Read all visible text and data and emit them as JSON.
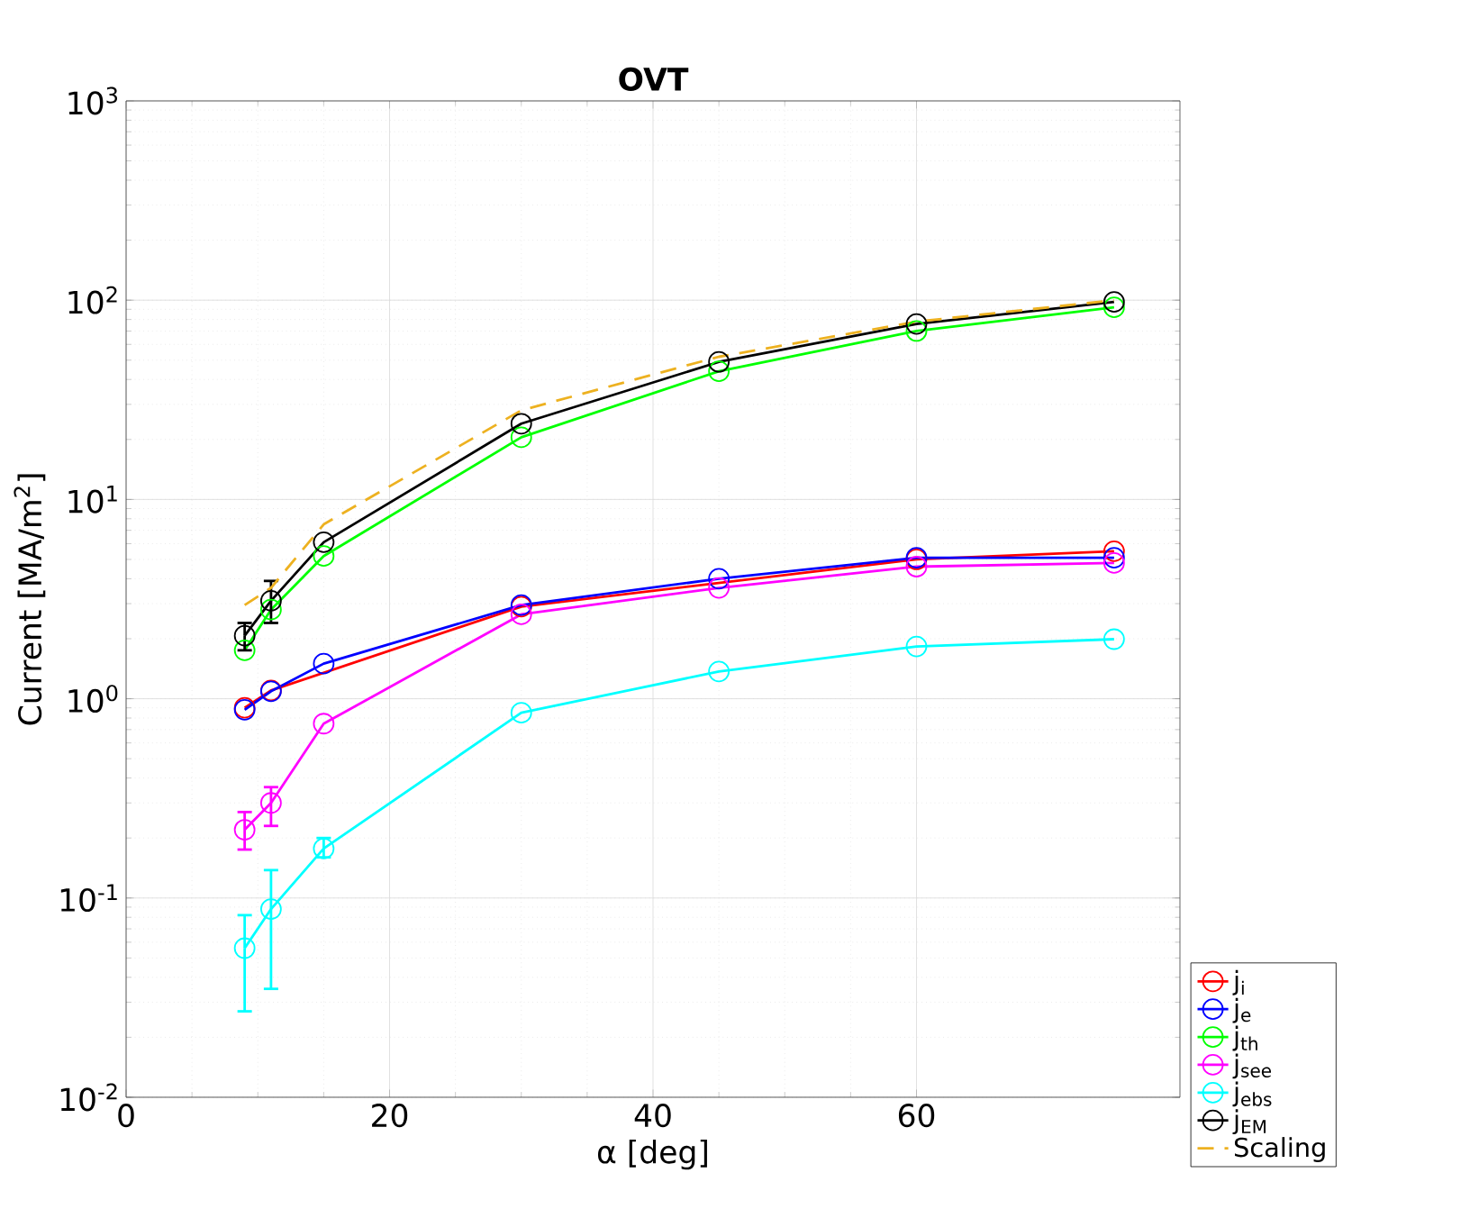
{
  "chart_data": {
    "type": "line",
    "title": "OVT",
    "xlabel": "α [deg]",
    "ylabel": "Current [MA/m$^{2}$]",
    "x": [
      9,
      11,
      15,
      30,
      45,
      60,
      75
    ],
    "xlim": [
      0,
      80
    ],
    "xticks": [
      0,
      20,
      40,
      60
    ],
    "ylim": [
      0.01,
      1000
    ],
    "yticks": [
      {
        "value": 0.01,
        "label": "10$^{-2}$"
      },
      {
        "value": 0.1,
        "label": "10$^{-1}$"
      },
      {
        "value": 1,
        "label": "10$^{0}$"
      },
      {
        "value": 10,
        "label": "10$^{1}$"
      },
      {
        "value": 100,
        "label": "10$^{2}$"
      },
      {
        "value": 1000,
        "label": "10$^{3}$"
      }
    ],
    "log": "y",
    "grid": true,
    "legend": "bottom right",
    "marker": "circle",
    "line_style": "solid",
    "series": [
      {
        "name": "j$_{i}$",
        "color": "#ff0000",
        "values": [
          0.9,
          1.1,
          null,
          2.9,
          null,
          5.0,
          5.5
        ]
      },
      {
        "name": "j$_{e}$",
        "color": "#0000ff",
        "values": [
          0.88,
          1.09,
          1.5,
          2.95,
          4.0,
          5.1,
          5.1
        ]
      },
      {
        "name": "j$_{th}$",
        "color": "#00ff00",
        "values": [
          1.75,
          2.8,
          5.2,
          20.5,
          44,
          70,
          92
        ]
      },
      {
        "name": "j$_{see}$",
        "color": "#ff00ff",
        "values": [
          0.22,
          0.3,
          0.75,
          2.65,
          3.6,
          4.6,
          4.8
        ],
        "errors": [
          [
            0.175,
            0.27
          ],
          [
            0.23,
            0.36
          ],
          null,
          null,
          null,
          null,
          null
        ]
      },
      {
        "name": "j$_{ebs}$",
        "color": "#00ffff",
        "values": [
          0.056,
          0.088,
          0.177,
          0.85,
          1.37,
          1.83,
          1.99
        ],
        "errors": [
          [
            0.027,
            0.082
          ],
          [
            0.035,
            0.138
          ],
          [
            0.16,
            0.2
          ],
          null,
          null,
          null,
          null
        ]
      },
      {
        "name": "j$_{EM}$",
        "color": "#000000",
        "values": [
          2.07,
          3.1,
          6.1,
          24,
          49,
          76,
          98
        ],
        "errors": [
          [
            1.75,
            2.4
          ],
          [
            2.4,
            3.9
          ],
          null,
          null,
          null,
          null,
          null
        ]
      },
      {
        "name": "Scaling",
        "color": "#edb120",
        "values": [
          2.95,
          3.6,
          7.5,
          28,
          52,
          78,
          100
        ],
        "marker": "none",
        "line_style": "dashed"
      }
    ]
  }
}
